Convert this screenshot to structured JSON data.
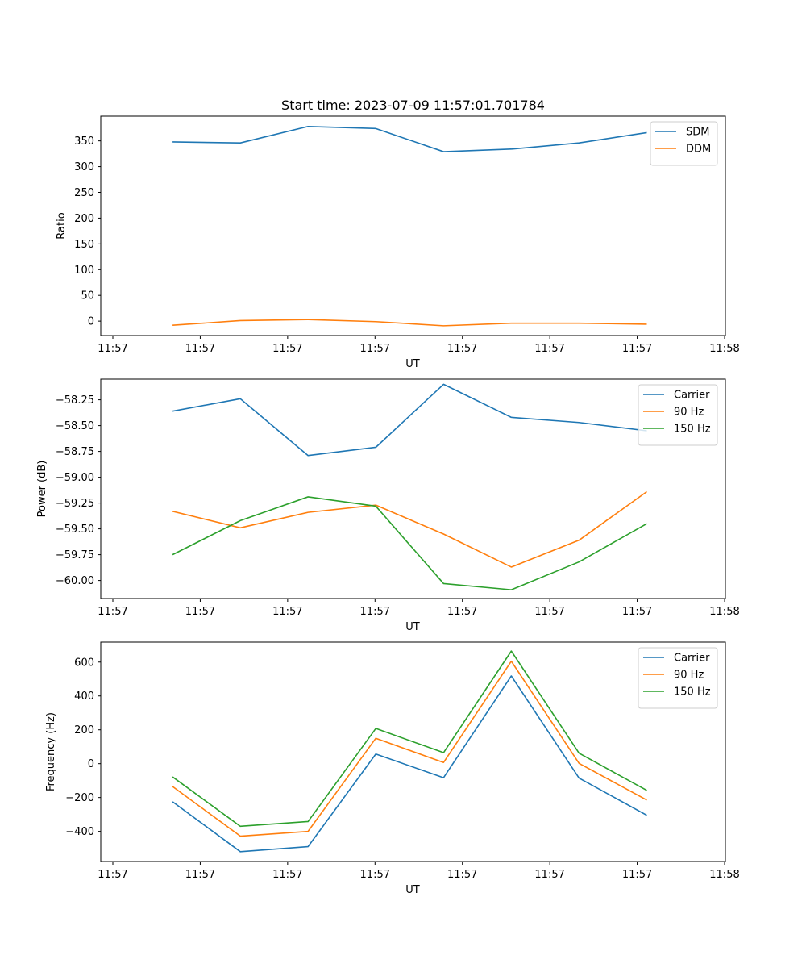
{
  "chart_data": [
    {
      "type": "line",
      "title": "Start time: 2023-07-09 11:57:01.701784",
      "xlabel": "UT",
      "ylabel": "Ratio",
      "x_tick_labels": [
        "11:57",
        "11:57",
        "11:57",
        "11:57",
        "11:57",
        "11:57",
        "11:57"
      ],
      "last_x_tick_label": "11:58",
      "y_ticks": [
        0,
        50,
        100,
        150,
        200,
        250,
        300,
        350
      ],
      "y_tick_labels": [
        "0",
        "50",
        "100",
        "150",
        "200",
        "250",
        "300",
        "350"
      ],
      "ylim": [
        -28,
        398
      ],
      "x": [
        1,
        2,
        3,
        4,
        5,
        6,
        7,
        8
      ],
      "xlim": [
        -0.06,
        9.16
      ],
      "grid": false,
      "legend": "top-right",
      "series": [
        {
          "name": "SDM",
          "color": "#1f77b4",
          "values": [
            348,
            346,
            378,
            374,
            329,
            334,
            346,
            366
          ]
        },
        {
          "name": "DDM",
          "color": "#ff7f0e",
          "values": [
            -8,
            1,
            3,
            -1,
            -9,
            -4,
            -4,
            -6
          ]
        }
      ]
    },
    {
      "type": "line",
      "title": "",
      "xlabel": "UT",
      "ylabel": "Power (dB)",
      "x_tick_labels": [
        "11:57",
        "11:57",
        "11:57",
        "11:57",
        "11:57",
        "11:57",
        "11:57"
      ],
      "last_x_tick_label": "11:58",
      "y_ticks": [
        -60.0,
        -59.75,
        -59.5,
        -59.25,
        -59.0,
        -58.75,
        -58.5,
        -58.25
      ],
      "y_tick_labels": [
        "−60.00",
        "−59.75",
        "−59.50",
        "−59.25",
        "−59.00",
        "−58.75",
        "−58.50",
        "−58.25"
      ],
      "ylim": [
        -60.175,
        -58.05
      ],
      "x": [
        1,
        2,
        3,
        4,
        5,
        6,
        7,
        8
      ],
      "xlim": [
        -0.06,
        9.16
      ],
      "grid": false,
      "legend": "top-right",
      "series": [
        {
          "name": "Carrier",
          "color": "#1f77b4",
          "values": [
            -58.36,
            -58.24,
            -58.79,
            -58.71,
            -58.1,
            -58.42,
            -58.47,
            -58.55
          ]
        },
        {
          "name": "90 Hz",
          "color": "#ff7f0e",
          "values": [
            -59.33,
            -59.49,
            -59.34,
            -59.27,
            -59.55,
            -59.87,
            -59.61,
            -59.14
          ]
        },
        {
          "name": "150 Hz",
          "color": "#2ca02c",
          "values": [
            -59.75,
            -59.42,
            -59.19,
            -59.28,
            -60.03,
            -60.09,
            -59.82,
            -59.45
          ]
        }
      ]
    },
    {
      "type": "line",
      "title": "",
      "xlabel": "UT",
      "ylabel": "Frequency (Hz)",
      "x_tick_labels": [
        "11:57",
        "11:57",
        "11:57",
        "11:57",
        "11:57",
        "11:57",
        "11:57"
      ],
      "last_x_tick_label": "11:58",
      "y_ticks": [
        -400,
        -200,
        0,
        200,
        400,
        600
      ],
      "y_tick_labels": [
        "−400",
        "−200",
        "0",
        "200",
        "400",
        "600"
      ],
      "ylim": [
        -578,
        718
      ],
      "x": [
        1,
        2,
        3,
        4,
        5,
        6,
        7,
        8
      ],
      "xlim": [
        -0.06,
        9.16
      ],
      "grid": false,
      "legend": "top-right",
      "series": [
        {
          "name": "Carrier",
          "color": "#1f77b4",
          "values": [
            -225,
            -520,
            -490,
            57,
            -83,
            518,
            -85,
            -305
          ]
        },
        {
          "name": "90 Hz",
          "color": "#ff7f0e",
          "values": [
            -135,
            -428,
            -400,
            150,
            7,
            605,
            2,
            -215
          ]
        },
        {
          "name": "150 Hz",
          "color": "#2ca02c",
          "values": [
            -78,
            -370,
            -342,
            208,
            65,
            665,
            62,
            -158
          ]
        }
      ]
    }
  ]
}
